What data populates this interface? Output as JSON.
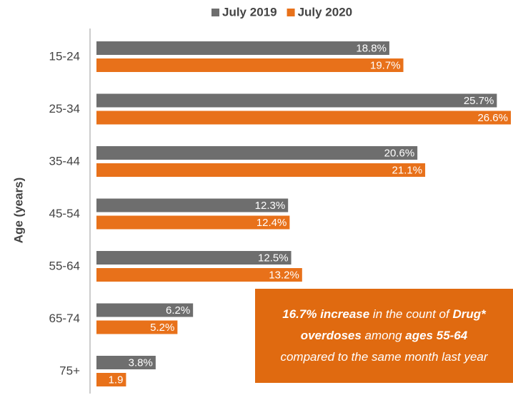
{
  "chart_data": {
    "type": "hbar",
    "y_label": "Age (years)",
    "categories": [
      "15-24",
      "25-34",
      "35-44",
      "45-54",
      "55-64",
      "65-74",
      "75+"
    ],
    "series": [
      {
        "name": "July 2019",
        "color": "#6e6e6e",
        "values": [
          18.8,
          25.7,
          20.6,
          12.3,
          12.5,
          6.2,
          3.8
        ],
        "value_labels": [
          "18.8%",
          "25.7%",
          "20.6%",
          "12.3%",
          "12.5%",
          "6.2%",
          "3.8%"
        ]
      },
      {
        "name": "July 2020",
        "color": "#e8711a",
        "values": [
          19.7,
          26.6,
          21.1,
          12.4,
          13.2,
          5.2,
          1.9
        ],
        "value_labels": [
          "19.7%",
          "26.6%",
          "21.1%",
          "12.4%",
          "13.2%",
          "5.2%",
          "1.9"
        ]
      }
    ],
    "legend": "top",
    "annotation": {
      "color": "#e06a10",
      "lines": [
        [
          {
            "text": "16.7% increase",
            "bold": true
          },
          {
            "text": " in the count of ",
            "bold": false
          },
          {
            "text": "Drug*",
            "bold": true
          }
        ],
        [
          {
            "text": "overdoses",
            "bold": true
          },
          {
            "text": " among ",
            "bold": false
          },
          {
            "text": "ages 55-64",
            "bold": true
          }
        ],
        [
          {
            "text": "compared to the same month last year",
            "bold": false
          }
        ]
      ]
    }
  }
}
